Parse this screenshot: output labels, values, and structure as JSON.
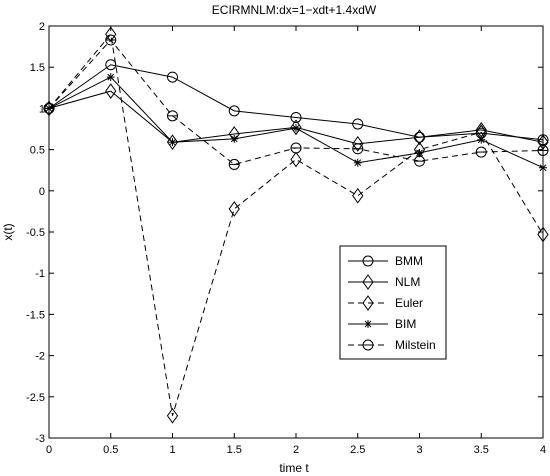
{
  "chart_data": {
    "type": "line",
    "title": "ECIRMNLM:dx=1−xdt+1.4xdW",
    "xlabel": "time t",
    "ylabel": "x(t)",
    "xlim": [
      0,
      4
    ],
    "ylim": [
      -3,
      2
    ],
    "xticks": [
      0,
      0.5,
      1,
      1.5,
      2,
      2.5,
      3,
      3.5,
      4
    ],
    "xtick_labels": [
      "0",
      "0.5",
      "1",
      "1.5",
      "2",
      "2.5",
      "3",
      "3.5",
      "4"
    ],
    "yticks": [
      -3,
      -2.5,
      -2,
      -1.5,
      -1,
      -0.5,
      0,
      0.5,
      1,
      1.5,
      2
    ],
    "ytick_labels": [
      "-3",
      "-2.5",
      "-2",
      "-1.5",
      "-1",
      "-0.5",
      "0",
      "0.5",
      "1",
      "1.5",
      "2"
    ],
    "grid": false,
    "legend_position": "right-center",
    "x": [
      0,
      0.5,
      1,
      1.5,
      2,
      2.5,
      3,
      3.5,
      4
    ],
    "series": [
      {
        "name": "BMM",
        "line": "solid",
        "marker": "circle",
        "color": "#000000",
        "values": [
          1.0,
          1.53,
          1.38,
          0.97,
          0.89,
          0.81,
          0.65,
          0.7,
          0.62
        ]
      },
      {
        "name": "NLM",
        "line": "solid",
        "marker": "diamond",
        "color": "#000000",
        "values": [
          1.0,
          1.21,
          0.59,
          0.69,
          0.77,
          0.57,
          0.65,
          0.74,
          0.59
        ]
      },
      {
        "name": "Euler",
        "line": "dashed",
        "marker": "diamond",
        "color": "#000000",
        "values": [
          1.0,
          1.9,
          -2.73,
          -0.22,
          0.38,
          -0.06,
          0.5,
          0.71,
          -0.53
        ]
      },
      {
        "name": "BIM",
        "line": "solid",
        "marker": "star",
        "color": "#000000",
        "values": [
          1.0,
          1.38,
          0.59,
          0.63,
          0.76,
          0.34,
          0.46,
          0.62,
          0.28
        ]
      },
      {
        "name": "Milstein",
        "line": "dashed",
        "marker": "circle-line",
        "color": "#000000",
        "values": [
          1.0,
          1.83,
          0.91,
          0.32,
          0.52,
          0.51,
          0.36,
          0.47,
          0.49
        ]
      }
    ]
  }
}
